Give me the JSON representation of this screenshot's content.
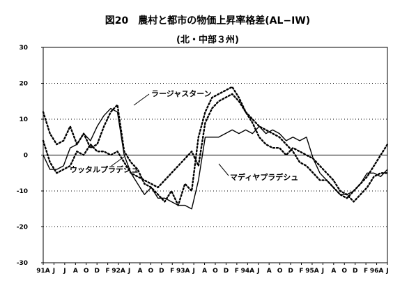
{
  "chart_data": {
    "type": "line",
    "title": "図20　農村と都市の物価上昇率格差(AL−IW)",
    "subtitle": "(北・中部３州)",
    "xlabel": "",
    "ylabel": "",
    "ylim": [
      -30,
      30
    ],
    "yticks": [
      "30",
      "20",
      "10",
      "0",
      "-10",
      "-20",
      "-30"
    ],
    "grid": "dotted horizontal",
    "legend": "inline annotations",
    "x_tick_labels": [
      "91A",
      "J",
      "J",
      "A",
      "O",
      "D",
      "F",
      "92A",
      "J",
      "A",
      "O",
      "D",
      "F",
      "93A",
      "J",
      "A",
      "O",
      "D",
      "F",
      "94A",
      "J",
      "A",
      "O",
      "D",
      "F",
      "95A",
      "J",
      "A",
      "O",
      "D",
      "F",
      "96A",
      "J"
    ],
    "annotations": [
      {
        "text": "ラージャスターン",
        "series": 0
      },
      {
        "text": "ウッタルプラデシュ",
        "series": 1
      },
      {
        "text": "マディヤプラデシュ",
        "series": 2
      }
    ],
    "series": [
      {
        "style": "dotted",
        "values": [
          12,
          6,
          3,
          4,
          8,
          3,
          6,
          2,
          3,
          8,
          12,
          14,
          1,
          -2,
          -4,
          -8,
          -9,
          -11,
          -13,
          -10,
          -14,
          -8,
          -10,
          5,
          12,
          16,
          17,
          18,
          19,
          16,
          12,
          10,
          8,
          7,
          6,
          5,
          3,
          1,
          -2,
          -3,
          -5,
          -7,
          -7,
          -9,
          -11,
          -12,
          -10,
          -8,
          -6,
          -3,
          0,
          3
        ]
      },
      {
        "style": "dotted",
        "values": [
          4,
          -2,
          -5,
          -4,
          -3,
          1,
          0,
          3,
          1,
          1,
          0,
          1,
          -2,
          -5,
          -6,
          -7,
          -8,
          -9,
          -7,
          -5,
          -3,
          -1,
          1,
          -3,
          9,
          13,
          15,
          16,
          17,
          15,
          12,
          9,
          5,
          3,
          2,
          2,
          0,
          2,
          1,
          0,
          -1,
          -3,
          -5,
          -7,
          -10,
          -11,
          -13,
          -11,
          -9,
          -6,
          -5,
          -5
        ]
      },
      {
        "style": "solid",
        "values": [
          0,
          -4,
          -4,
          -3,
          2,
          3,
          6,
          4,
          8,
          11,
          13,
          12,
          0,
          -5,
          -8,
          -11,
          -9,
          -12,
          -12,
          -13,
          -14,
          -14,
          -15,
          -7,
          5,
          5,
          5,
          6,
          7,
          6,
          7,
          6,
          8,
          6,
          7,
          6,
          4,
          5,
          4,
          5,
          -1,
          -5,
          -7,
          -9,
          -11,
          -11,
          -10,
          -8,
          -5,
          -5,
          -6,
          -4
        ]
      }
    ]
  }
}
